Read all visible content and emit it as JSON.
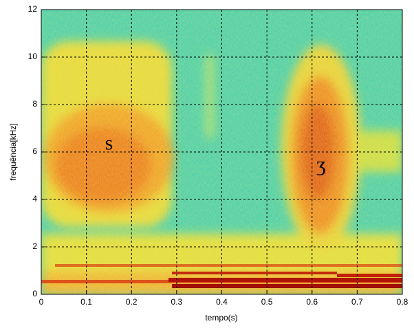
{
  "chart_data": {
    "type": "spectrogram",
    "xlabel": "tempo(s)",
    "ylabel": "frequência[kHz]",
    "xlim": [
      0,
      0.8
    ],
    "xticks": [
      0,
      0.1,
      0.2,
      0.3,
      0.4,
      0.5,
      0.6,
      0.7,
      0.8
    ],
    "ylim": [
      0,
      12
    ],
    "yticks": [
      0,
      2,
      4,
      6,
      8,
      10,
      12
    ],
    "grid": true,
    "annotations": [
      {
        "text": "s",
        "x": 0.15,
        "y": 6.3
      },
      {
        "text": "ʒ",
        "x": 0.62,
        "y": 5.4
      }
    ]
  }
}
